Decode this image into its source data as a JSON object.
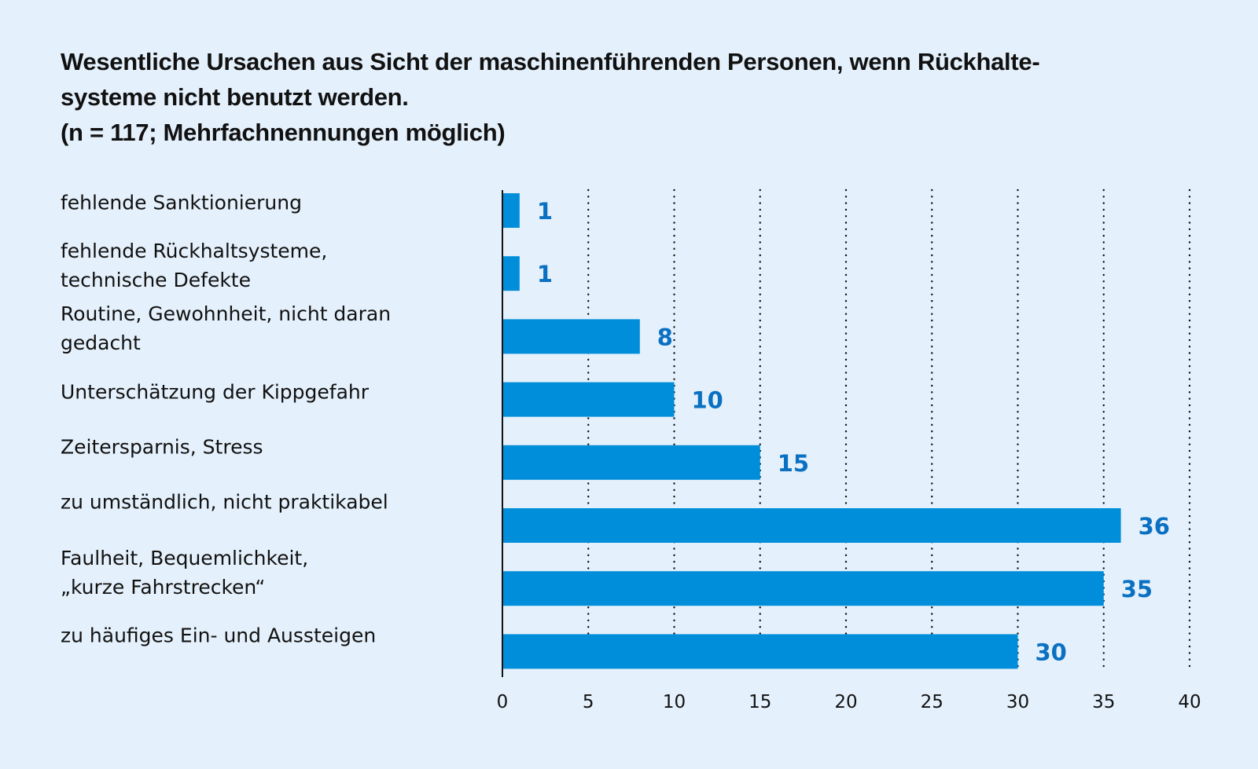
{
  "chart_data": {
    "type": "bar",
    "orientation": "horizontal",
    "title_lines": [
      "Wesentliche Ursachen aus Sicht der maschinenführenden Personen, wenn Rückhalte-",
      "systeme nicht benutzt werden.",
      "(n = 117; Mehrfachnennungen möglich)"
    ],
    "categories": [
      "fehlende Sanktionierung",
      "fehlende Rückhaltsysteme,\ntechnische Defekte",
      "Routine, Gewohnheit, nicht daran\ngedacht",
      "Unterschätzung der Kippgefahr",
      "Zeitersparnis, Stress",
      "zu umständlich, nicht praktikabel",
      "Faulheit, Bequemlichkeit,\n„kurze Fahrstrecken“",
      "zu häufiges Ein- und Aussteigen"
    ],
    "values": [
      1,
      1,
      8,
      10,
      15,
      36,
      35,
      30
    ],
    "data_labels": [
      "1",
      "1",
      "8",
      "10",
      "15",
      "36",
      "35",
      "30"
    ],
    "xlabel": "",
    "ylabel": "",
    "xlim": [
      0,
      40
    ],
    "xticks": [
      0,
      5,
      10,
      15,
      20,
      25,
      30,
      35,
      40
    ],
    "xtick_labels": [
      "0",
      "5",
      "10",
      "15",
      "20",
      "25",
      "30",
      "35",
      "40"
    ],
    "grid": "vertical dotted",
    "legend": "none",
    "colors": {
      "bar": "#008edb",
      "value_label": "#0a70c2",
      "background": "#e4f0fb",
      "text": "#111111"
    }
  }
}
